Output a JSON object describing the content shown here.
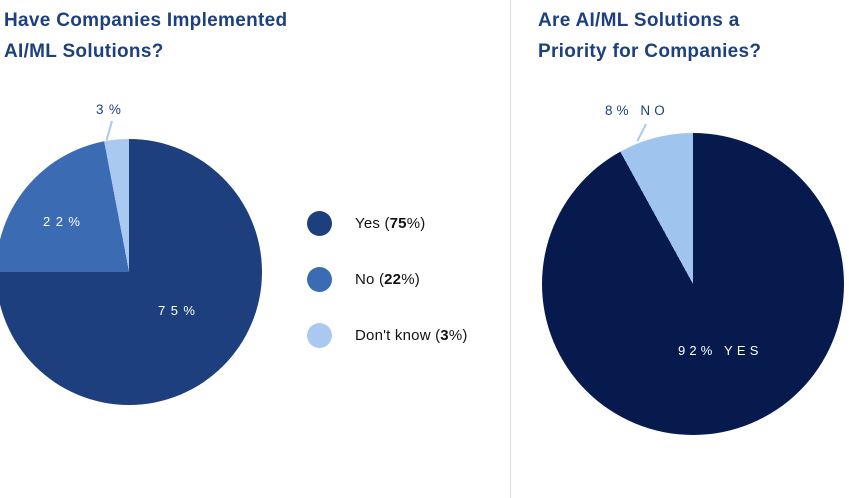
{
  "page": {
    "background": "#ffffff",
    "divider_color": "#dcdcdc",
    "title_color": "#1d4080"
  },
  "chart_data": [
    {
      "type": "pie",
      "title": "Have Companies Implemented AI/ML Solutions?",
      "title_lines": [
        "Have Companies Implemented",
        "AI/ML Solutions?"
      ],
      "categories": [
        "Yes",
        "No",
        "Don't know"
      ],
      "values": [
        75,
        22,
        3
      ],
      "colors": [
        "#1d3f7e",
        "#3b6cb3",
        "#a9c9f0"
      ],
      "start_angle_deg": 0,
      "direction": "clockwise",
      "legend_position": "right",
      "slice_value_labels": {
        "yes": "75%",
        "no": "22%",
        "dont_know": "3%"
      },
      "legend": [
        {
          "prefix": "Yes (",
          "value": "75",
          "suffix": "%)",
          "color": "#1d3f7e"
        },
        {
          "prefix": "No (",
          "value": "22",
          "suffix": "%)",
          "color": "#3b6cb3"
        },
        {
          "prefix": "Don't know (",
          "value": "3",
          "suffix": "%)",
          "color": "#a9c9f0"
        }
      ]
    },
    {
      "type": "pie",
      "title": "Are AI/ML Solutions a Priority for Companies?",
      "title_lines": [
        "Are AI/ML Solutions a",
        "Priority for Companies?"
      ],
      "categories": [
        "Yes",
        "No"
      ],
      "values": [
        92,
        8
      ],
      "colors": [
        "#061a4e",
        "#9fc4ed"
      ],
      "start_angle_deg": 0,
      "direction": "clockwise",
      "legend_position": "none",
      "slice_value_labels": {
        "yes": "92% YES",
        "no": "8% NO"
      }
    }
  ]
}
